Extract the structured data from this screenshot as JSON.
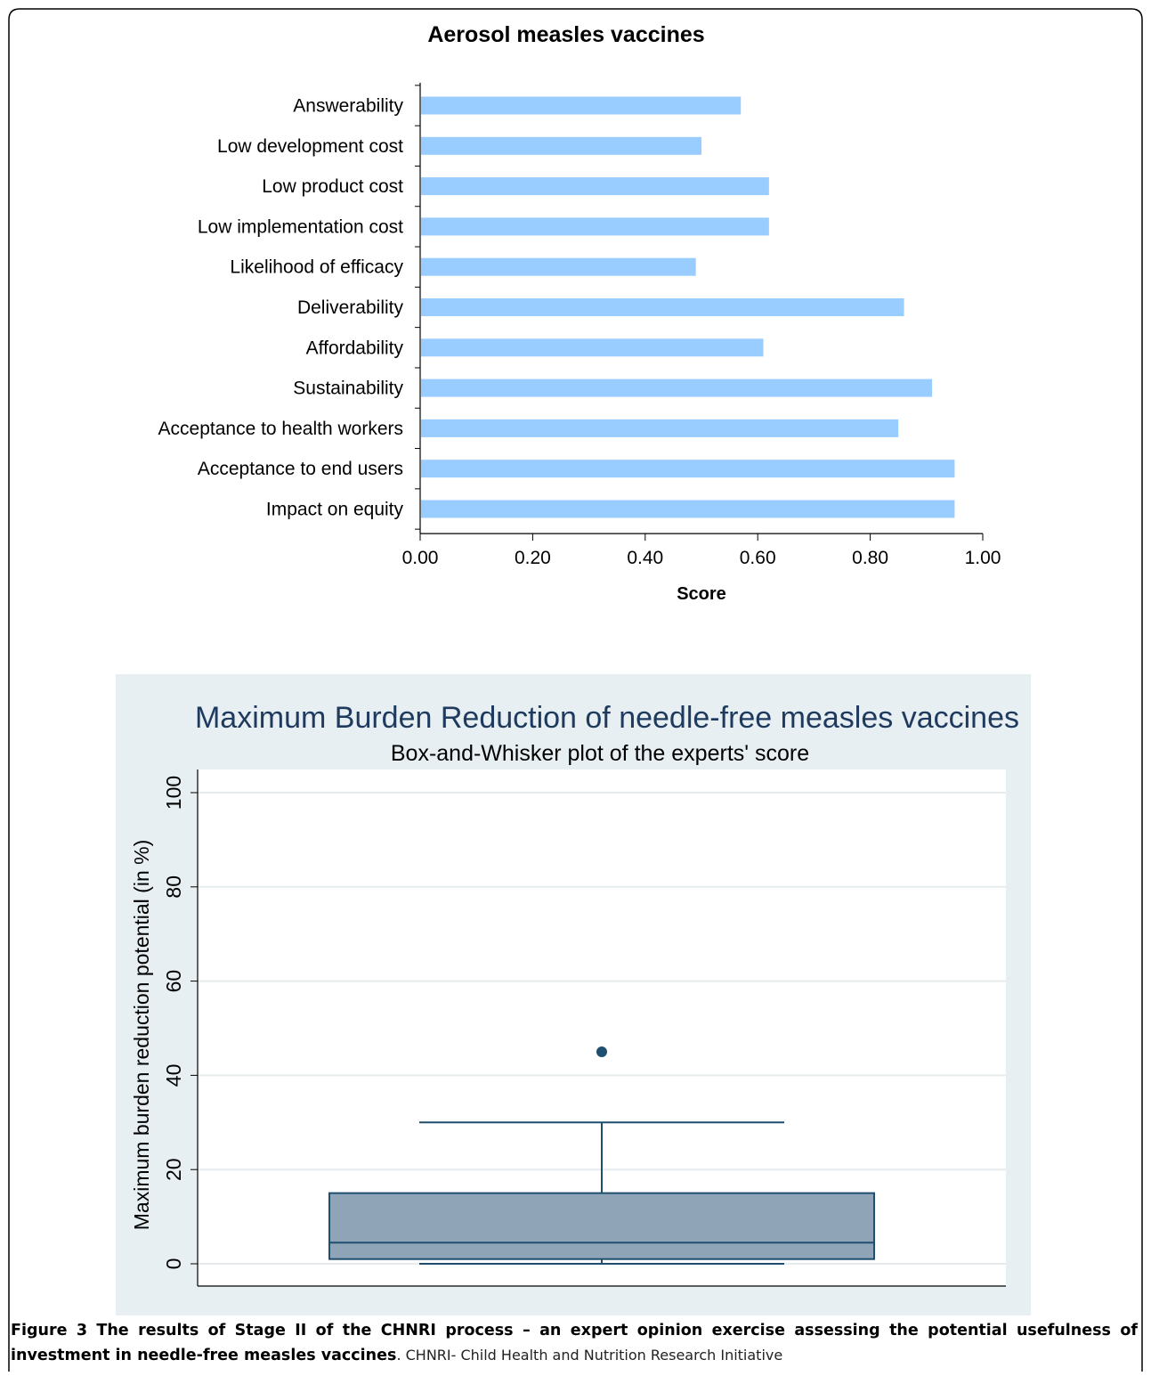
{
  "figure": {
    "caption_bold": "Figure 3 The results of Stage II of the CHNRI process – an expert opinion exercise assessing the potential usefulness of investment in needle-free measles vaccines",
    "caption_rest": ". CHNRI- Child Health and Nutrition Research Initiative"
  },
  "chart_data": [
    {
      "type": "bar",
      "orientation": "horizontal",
      "title": "Aerosol measles vaccines",
      "xlabel": "Score",
      "ylabel": "",
      "xlim": [
        0,
        1
      ],
      "x_ticks": [
        "0.00",
        "0.20",
        "0.40",
        "0.60",
        "0.80",
        "1.00"
      ],
      "categories": [
        "Answerability",
        "Low development cost",
        "Low product cost",
        "Low implementation cost",
        "Likelihood of efficacy",
        "Deliverability",
        "Affordability",
        "Sustainability",
        "Acceptance to health workers",
        "Acceptance to end users",
        "Impact on equity"
      ],
      "values": [
        0.57,
        0.5,
        0.62,
        0.62,
        0.49,
        0.86,
        0.61,
        0.91,
        0.85,
        0.95,
        0.95
      ],
      "bar_color": "#99ccff",
      "grid": false
    },
    {
      "type": "box",
      "title": "Maximum Burden Reduction of needle-free measles vaccines",
      "subtitle": "Box-and-Whisker plot of the experts' score",
      "xlabel": "",
      "ylabel": "Maximum burden reduction potential (in %)",
      "ylim": [
        0,
        100
      ],
      "y_ticks": [
        "0",
        "20",
        "40",
        "60",
        "80",
        "100"
      ],
      "box": {
        "min": 0,
        "q1": 1,
        "median": 4.5,
        "q3": 15,
        "max": 30,
        "outliers": [
          45
        ]
      },
      "box_color": "#90a4b8",
      "line_color": "#1f4e6e",
      "grid": true,
      "panel_color": "#e7eff2"
    }
  ]
}
